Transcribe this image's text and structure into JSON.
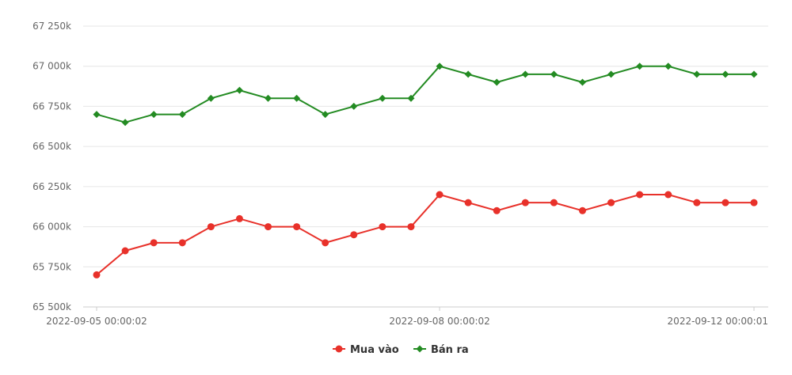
{
  "chart_data": {
    "type": "line",
    "title": "",
    "xlabel": "",
    "ylabel": "",
    "ylim": [
      65500,
      67250
    ],
    "y_ticks": [
      65500,
      65750,
      66000,
      66250,
      66500,
      66750,
      67000,
      67250
    ],
    "y_tick_labels": [
      "65 500k",
      "65 750k",
      "66 000k",
      "66 250k",
      "66 500k",
      "66 750k",
      "67 000k",
      "67 250k"
    ],
    "x_tick_labels": [
      {
        "index": 0,
        "label": "2022-09-05 00:00:02"
      },
      {
        "index": 12,
        "label": "2022-09-08 00:00:02"
      },
      {
        "index": 23,
        "label": "2022-09-12 00:00:01"
      }
    ],
    "point_count": 24,
    "grid": true,
    "legend_position": "bottom-center",
    "series": [
      {
        "name": "Mua vào",
        "color": "#e8312a",
        "marker": "circle",
        "values": [
          65700,
          65850,
          65900,
          65900,
          66000,
          66050,
          66000,
          66000,
          65900,
          65950,
          66000,
          66000,
          66200,
          66150,
          66100,
          66150,
          66150,
          66100,
          66150,
          66200,
          66200,
          66150,
          66150,
          66150
        ]
      },
      {
        "name": "Bán ra",
        "color": "#238b22",
        "marker": "diamond",
        "values": [
          66700,
          66650,
          66700,
          66700,
          66800,
          66850,
          66800,
          66800,
          66700,
          66750,
          66800,
          66800,
          67000,
          66950,
          66900,
          66950,
          66950,
          66900,
          66950,
          67000,
          67000,
          66950,
          66950,
          66950
        ]
      }
    ]
  }
}
